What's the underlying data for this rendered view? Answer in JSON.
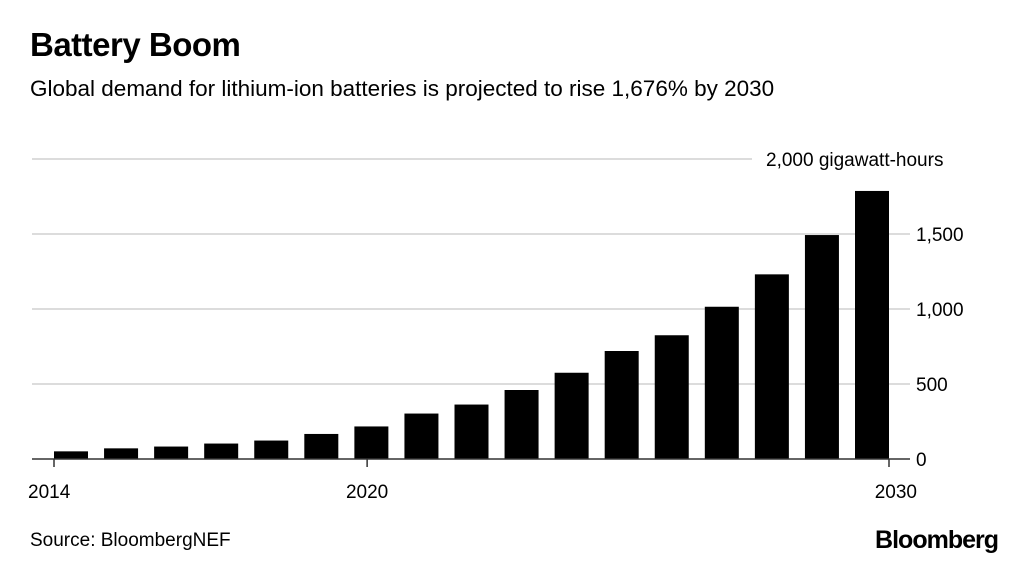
{
  "title": "Battery Boom",
  "subtitle": "Global demand for lithium-ion batteries is projected to rise 1,676% by 2030",
  "source": "Source: BloombergNEF",
  "logo": "Bloomberg",
  "chart_data": {
    "type": "bar",
    "title": "Battery Boom",
    "subtitle": "Global demand for lithium-ion batteries is projected to rise 1,676% by 2030",
    "ylabel": "",
    "yunit_label": "2,000 gigawatt-hours",
    "ylim": [
      0,
      2000
    ],
    "yticks": [
      0,
      500,
      1000,
      1500,
      2000
    ],
    "ytick_labels": [
      "0",
      "500",
      "1,000",
      "1,500",
      "2,000 gigawatt-hours"
    ],
    "xticks": [
      2014,
      2020,
      2030
    ],
    "xtick_labels": [
      "2014",
      "2020",
      "2030"
    ],
    "grid": true,
    "bar_color": "#000000",
    "categories": [
      2014,
      2015,
      2016,
      2017,
      2018,
      2019,
      2020,
      2021,
      2022,
      2023,
      2024,
      2025,
      2026,
      2027,
      2028,
      2029,
      2030
    ],
    "values": [
      51,
      71,
      83,
      103,
      123,
      167,
      217,
      303,
      363,
      460,
      575,
      720,
      825,
      1015,
      1231,
      1493,
      1787
    ]
  }
}
